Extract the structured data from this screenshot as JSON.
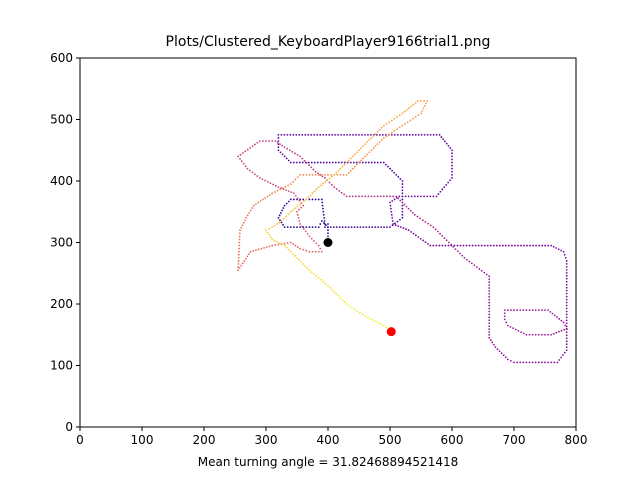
{
  "chart_data": {
    "type": "scatter",
    "title": "Plots/Clustered_KeyboardPlayer9166trial1.png",
    "xlabel": "Mean turning angle = 31.82468894521418",
    "ylabel": "",
    "xlim": [
      0,
      800
    ],
    "ylim": [
      0,
      600
    ],
    "xticks": [
      "0",
      "100",
      "200",
      "300",
      "400",
      "500",
      "600",
      "700",
      "800"
    ],
    "yticks": [
      "0",
      "100",
      "200",
      "300",
      "400",
      "500",
      "600"
    ],
    "grid": false,
    "colormap": "plasma (path order)",
    "path": [
      [
        400,
        300
      ],
      [
        400,
        325
      ],
      [
        390,
        335
      ],
      [
        385,
        325
      ],
      [
        330,
        325
      ],
      [
        320,
        340
      ],
      [
        330,
        360
      ],
      [
        340,
        370
      ],
      [
        390,
        370
      ],
      [
        395,
        330
      ],
      [
        400,
        330
      ],
      [
        395,
        325
      ],
      [
        500,
        325
      ],
      [
        520,
        340
      ],
      [
        520,
        400
      ],
      [
        490,
        430
      ],
      [
        340,
        430
      ],
      [
        320,
        450
      ],
      [
        320,
        475
      ],
      [
        580,
        475
      ],
      [
        600,
        450
      ],
      [
        600,
        405
      ],
      [
        575,
        375
      ],
      [
        515,
        375
      ],
      [
        500,
        365
      ],
      [
        505,
        330
      ],
      [
        530,
        320
      ],
      [
        565,
        295
      ],
      [
        760,
        295
      ],
      [
        780,
        285
      ],
      [
        785,
        270
      ],
      [
        785,
        125
      ],
      [
        770,
        105
      ],
      [
        700,
        105
      ],
      [
        690,
        110
      ],
      [
        670,
        130
      ],
      [
        660,
        145
      ],
      [
        660,
        245
      ],
      [
        640,
        260
      ],
      [
        620,
        275
      ],
      [
        595,
        300
      ],
      [
        570,
        325
      ],
      [
        540,
        345
      ],
      [
        510,
        375
      ],
      [
        475,
        375
      ],
      [
        430,
        375
      ],
      [
        410,
        390
      ],
      [
        395,
        405
      ],
      [
        380,
        415
      ],
      [
        355,
        440
      ],
      [
        330,
        455
      ],
      [
        315,
        465
      ],
      [
        290,
        465
      ],
      [
        255,
        440
      ],
      [
        270,
        420
      ],
      [
        290,
        405
      ],
      [
        320,
        390
      ],
      [
        345,
        380
      ],
      [
        360,
        360
      ],
      [
        350,
        350
      ],
      [
        355,
        330
      ],
      [
        370,
        310
      ],
      [
        385,
        295
      ],
      [
        390,
        285
      ],
      [
        370,
        285
      ],
      [
        355,
        290
      ],
      [
        340,
        300
      ],
      [
        310,
        295
      ],
      [
        275,
        285
      ],
      [
        265,
        270
      ],
      [
        255,
        255
      ],
      [
        258,
        320
      ],
      [
        268,
        340
      ],
      [
        280,
        360
      ],
      [
        295,
        370
      ],
      [
        310,
        380
      ],
      [
        340,
        395
      ],
      [
        355,
        410
      ],
      [
        410,
        410
      ],
      [
        430,
        410
      ],
      [
        450,
        430
      ],
      [
        490,
        470
      ],
      [
        520,
        490
      ],
      [
        550,
        510
      ],
      [
        560,
        530
      ],
      [
        545,
        530
      ],
      [
        520,
        510
      ],
      [
        490,
        490
      ],
      [
        470,
        470
      ],
      [
        440,
        440
      ],
      [
        410,
        410
      ],
      [
        385,
        390
      ],
      [
        365,
        370
      ],
      [
        340,
        350
      ],
      [
        325,
        335
      ],
      [
        310,
        325
      ],
      [
        300,
        320
      ],
      [
        310,
        305
      ],
      [
        330,
        295
      ],
      [
        350,
        275
      ],
      [
        370,
        255
      ],
      [
        400,
        230
      ],
      [
        430,
        200
      ],
      [
        460,
        180
      ],
      [
        490,
        165
      ],
      [
        502,
        155
      ]
    ],
    "loop_detail": [
      [
        685,
        190
      ],
      [
        755,
        190
      ],
      [
        780,
        170
      ],
      [
        785,
        160
      ],
      [
        760,
        150
      ],
      [
        720,
        150
      ],
      [
        690,
        165
      ],
      [
        685,
        175
      ]
    ],
    "start_point": {
      "x": 400,
      "y": 300,
      "color": "#000000"
    },
    "end_point": {
      "x": 502,
      "y": 155,
      "color": "#ff0000"
    }
  }
}
